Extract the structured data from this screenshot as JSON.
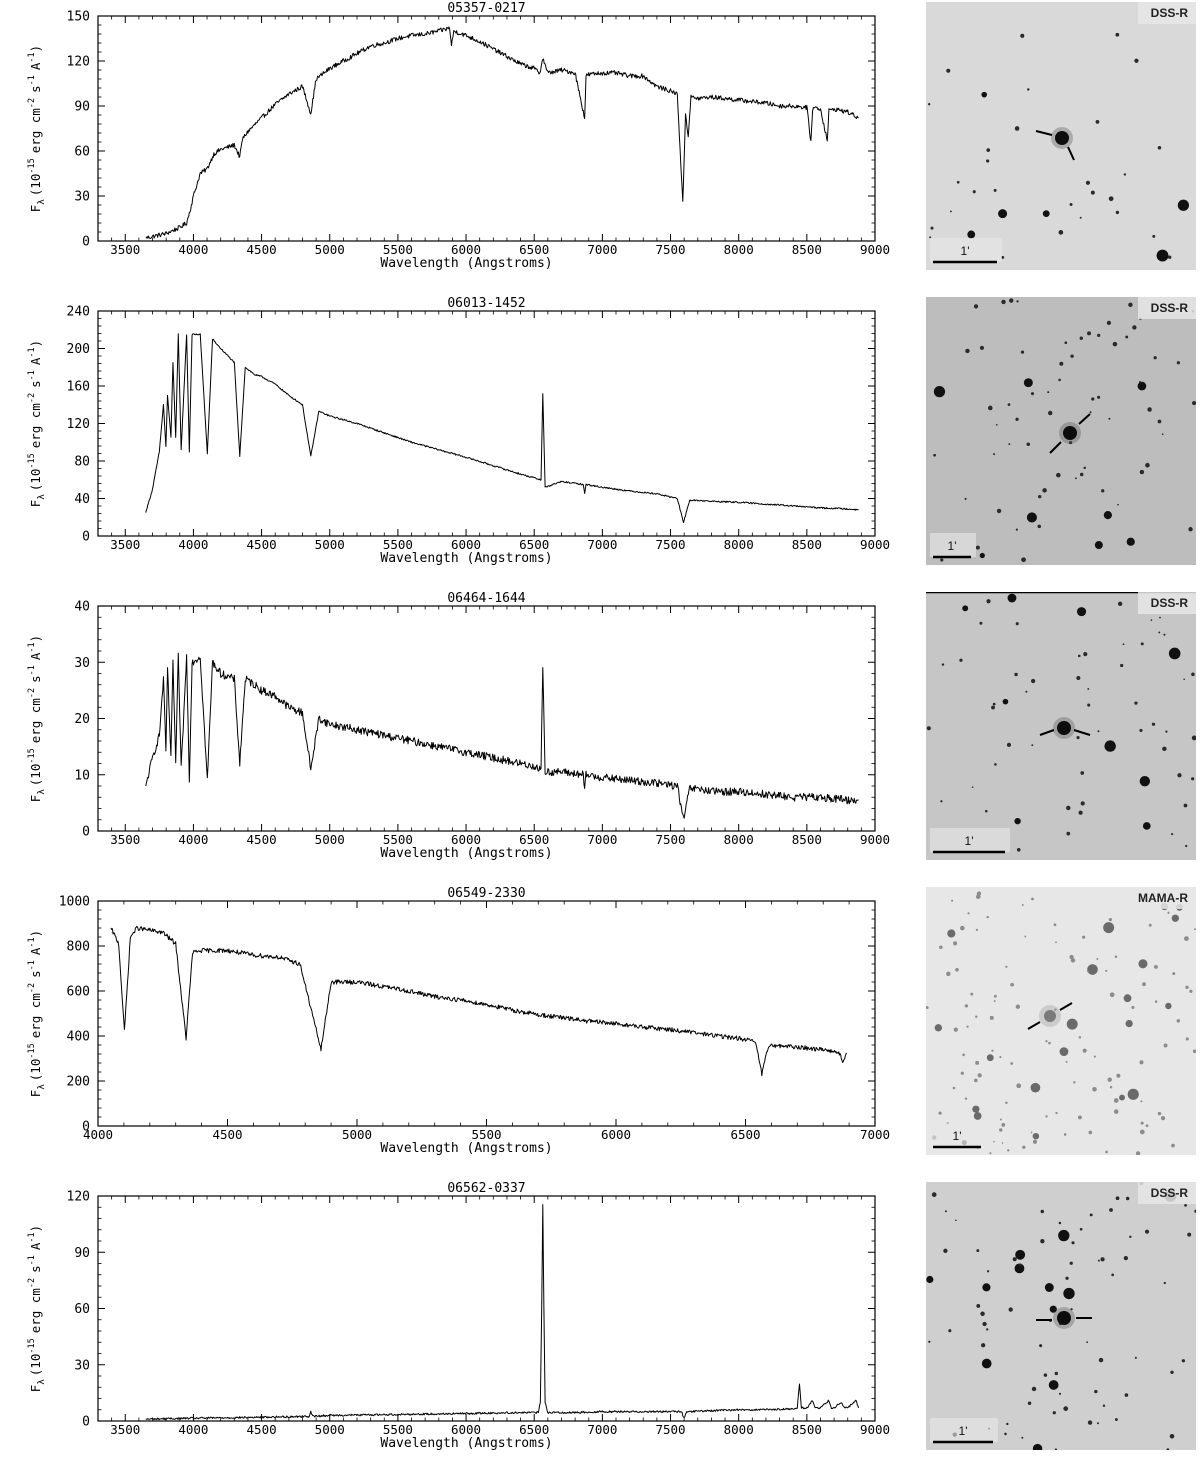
{
  "common": {
    "xlabel": "Wavelength (Angstroms)",
    "ylabel_parts": {
      "f": "F",
      "lambda": "λ",
      "open": "(10",
      "e15": "-15",
      "erg": "erg cm",
      "e2": "-2",
      "s": "s",
      "e1a": "-1",
      "A": "A",
      "e1b": "-1",
      "close": ")"
    }
  },
  "chart_data": [
    {
      "type": "line",
      "title": "05357-0217",
      "xlabel": "Wavelength (Angstroms)",
      "ylabel": "F_λ (10^-15 erg cm^-2 s^-1 A^-1)",
      "xlim": [
        3300,
        9000
      ],
      "ylim": [
        0,
        150
      ],
      "xticks": [
        3500,
        4000,
        4500,
        5000,
        5500,
        6000,
        6500,
        7000,
        7500,
        8000,
        8500,
        9000
      ],
      "yticks": [
        0,
        30,
        60,
        90,
        120,
        150
      ],
      "noise": 1.5,
      "series": [
        {
          "x": [
            3650,
            3800,
            3900,
            3950,
            3980,
            4000,
            4050,
            4100,
            4150,
            4200,
            4300,
            4340,
            4360,
            4400,
            4500,
            4600,
            4700,
            4800,
            4861,
            4900,
            5000,
            5100,
            5200,
            5300,
            5400,
            5500,
            5600,
            5700,
            5800,
            5880,
            5893,
            5910,
            6000,
            6100,
            6200,
            6300,
            6400,
            6500,
            6540,
            6563,
            6600,
            6700,
            6800,
            6870,
            6880,
            6900,
            7000,
            7100,
            7200,
            7300,
            7400,
            7500,
            7550,
            7590,
            7610,
            7630,
            7650,
            7700,
            7800,
            7900,
            8000,
            8100,
            8200,
            8300,
            8400,
            8500,
            8530,
            8542,
            8560,
            8600,
            8650,
            8662,
            8680,
            8700,
            8800,
            8880
          ],
          "y": [
            2,
            5,
            9,
            12,
            22,
            30,
            45,
            48,
            58,
            61,
            64,
            56,
            68,
            73,
            82,
            91,
            98,
            103,
            85,
            108,
            115,
            120,
            125,
            130,
            132,
            135,
            137,
            138,
            140,
            142,
            130,
            140,
            137,
            133,
            128,
            123,
            118,
            115,
            112,
            122,
            112,
            114,
            112,
            82,
            110,
            111,
            112,
            112,
            110,
            110,
            103,
            100,
            98,
            25,
            85,
            70,
            96,
            95,
            96,
            95,
            94,
            93,
            92,
            90,
            90,
            89,
            66,
            88,
            89,
            88,
            67,
            87,
            87,
            88,
            86,
            82
          ]
        }
      ]
    },
    {
      "type": "line",
      "title": "06013-1452",
      "xlabel": "Wavelength (Angstroms)",
      "ylabel": "F_λ (10^-15 erg cm^-2 s^-1 A^-1)",
      "xlim": [
        3300,
        9000
      ],
      "ylim": [
        0,
        240
      ],
      "xticks": [
        3500,
        4000,
        4500,
        5000,
        5500,
        6000,
        6500,
        7000,
        7500,
        8000,
        8500,
        9000
      ],
      "yticks": [
        0,
        40,
        80,
        120,
        160,
        200,
        240
      ],
      "noise": 0.8,
      "series": [
        {
          "x": [
            3650,
            3700,
            3750,
            3780,
            3798,
            3810,
            3835,
            3850,
            3870,
            3889,
            3910,
            3950,
            3970,
            3990,
            4050,
            4102,
            4140,
            4200,
            4300,
            4340,
            4380,
            4450,
            4500,
            4600,
            4700,
            4800,
            4861,
            4920,
            5000,
            5200,
            5400,
            5600,
            5800,
            6000,
            6200,
            6400,
            6500,
            6550,
            6563,
            6580,
            6700,
            6860,
            6870,
            6880,
            7000,
            7200,
            7400,
            7550,
            7595,
            7640,
            7700,
            7800,
            8000,
            8200,
            8400,
            8600,
            8800,
            8880
          ],
          "y": [
            25,
            50,
            90,
            140,
            95,
            150,
            105,
            185,
            105,
            215,
            92,
            215,
            90,
            215,
            215,
            88,
            210,
            200,
            185,
            85,
            180,
            172,
            170,
            162,
            150,
            140,
            85,
            133,
            128,
            120,
            110,
            100,
            92,
            84,
            75,
            66,
            62,
            60,
            152,
            52,
            58,
            55,
            45,
            55,
            52,
            48,
            45,
            40,
            14,
            38,
            38,
            37,
            36,
            34,
            32,
            30,
            29,
            28
          ]
        }
      ]
    },
    {
      "type": "line",
      "title": "06464-1644",
      "xlabel": "Wavelength (Angstroms)",
      "ylabel": "F_λ (10^-15 erg cm^-2 s^-1 A^-1)",
      "xlim": [
        3300,
        9000
      ],
      "ylim": [
        0,
        40
      ],
      "xticks": [
        3500,
        4000,
        4500,
        5000,
        5500,
        6000,
        6500,
        7000,
        7500,
        8000,
        8500,
        9000
      ],
      "yticks": [
        0,
        10,
        20,
        30,
        40
      ],
      "noise": 0.7,
      "series": [
        {
          "x": [
            3650,
            3700,
            3750,
            3780,
            3798,
            3810,
            3835,
            3850,
            3870,
            3889,
            3910,
            3950,
            3970,
            3990,
            4050,
            4102,
            4140,
            4200,
            4300,
            4340,
            4380,
            4450,
            4500,
            4600,
            4700,
            4800,
            4861,
            4920,
            5000,
            5200,
            5400,
            5600,
            5800,
            6000,
            6200,
            6400,
            6500,
            6550,
            6563,
            6580,
            6700,
            6860,
            6870,
            6880,
            7000,
            7200,
            7400,
            7550,
            7595,
            7640,
            7700,
            7800,
            8000,
            8200,
            8400,
            8600,
            8800,
            8880
          ],
          "y": [
            8,
            13,
            17,
            27,
            14,
            29,
            13,
            30,
            12,
            31,
            11,
            31,
            9,
            30,
            31,
            9,
            30,
            28,
            27,
            12,
            27,
            26,
            25,
            24,
            22,
            21,
            11,
            20,
            19,
            18,
            17,
            16,
            15,
            14,
            13,
            12,
            11.5,
            11,
            29.5,
            10.5,
            10.5,
            10,
            7,
            10,
            9.5,
            9,
            8.5,
            8,
            2,
            7.5,
            7.5,
            7,
            7,
            6.5,
            6,
            6,
            5.5,
            5.5
          ]
        }
      ]
    },
    {
      "type": "line",
      "title": "06549-2330",
      "xlabel": "Wavelength (Angstroms)",
      "ylabel": "F_λ (10^-15 erg cm^-2 s^-1 A^-1)",
      "xlim": [
        4000,
        7000
      ],
      "ylim": [
        0,
        1000
      ],
      "xticks": [
        4000,
        4500,
        5000,
        5500,
        6000,
        6500,
        7000
      ],
      "yticks": [
        0,
        200,
        400,
        600,
        800,
        1000
      ],
      "noise": 10,
      "series": [
        {
          "x": [
            4050,
            4080,
            4102,
            4125,
            4150,
            4200,
            4250,
            4300,
            4340,
            4365,
            4400,
            4500,
            4600,
            4700,
            4780,
            4861,
            4900,
            5000,
            5100,
            5200,
            5300,
            5400,
            5500,
            5600,
            5700,
            5800,
            5900,
            6000,
            6100,
            6200,
            6300,
            6400,
            6500,
            6540,
            6563,
            6590,
            6650,
            6700,
            6800,
            6860,
            6875,
            6890
          ],
          "y": [
            880,
            810,
            420,
            840,
            880,
            870,
            860,
            810,
            390,
            770,
            780,
            780,
            760,
            750,
            720,
            340,
            640,
            640,
            620,
            600,
            575,
            560,
            540,
            515,
            495,
            480,
            465,
            455,
            440,
            430,
            415,
            400,
            385,
            370,
            230,
            360,
            355,
            350,
            340,
            330,
            285,
            325
          ]
        }
      ]
    },
    {
      "type": "line",
      "title": "06562-0337",
      "xlabel": "Wavelength (Angstroms)",
      "ylabel": "F_λ (10^-15 erg cm^-2 s^-1 A^-1)",
      "xlim": [
        3300,
        9000
      ],
      "ylim": [
        0,
        120
      ],
      "xticks": [
        3500,
        4000,
        4500,
        5000,
        5500,
        6000,
        6500,
        7000,
        7500,
        8000,
        8500,
        9000
      ],
      "yticks": [
        0,
        30,
        60,
        90,
        120
      ],
      "noise": 0.5,
      "series": [
        {
          "x": [
            3650,
            4000,
            4500,
            4850,
            4861,
            4875,
            5000,
            5500,
            6000,
            6400,
            6530,
            6545,
            6555,
            6563,
            6571,
            6580,
            6600,
            6800,
            7000,
            7400,
            7580,
            7600,
            7620,
            7800,
            8000,
            8200,
            8400,
            8430,
            8446,
            8460,
            8500,
            8542,
            8560,
            8600,
            8662,
            8680,
            8700,
            8750,
            8780,
            8800,
            8860,
            8880
          ],
          "y": [
            1,
            1.5,
            2,
            2.5,
            5,
            2.5,
            3,
            3.5,
            4,
            4.5,
            4.5,
            10,
            60,
            115,
            60,
            10,
            4.5,
            4.5,
            5,
            5,
            5,
            1.5,
            5,
            5.5,
            6,
            6,
            6.5,
            7,
            20,
            7,
            7,
            11,
            7,
            7,
            11,
            7,
            7,
            10,
            7,
            7,
            11,
            7
          ]
        }
      ]
    }
  ],
  "images": [
    {
      "survey": "DSS-R",
      "scale": "1'"
    },
    {
      "survey": "DSS-R",
      "scale": "1'"
    },
    {
      "survey": "DSS-R",
      "scale": "1'"
    },
    {
      "survey": "MAMA-R",
      "scale": "1'"
    },
    {
      "survey": "DSS-R",
      "scale": "1'"
    }
  ]
}
